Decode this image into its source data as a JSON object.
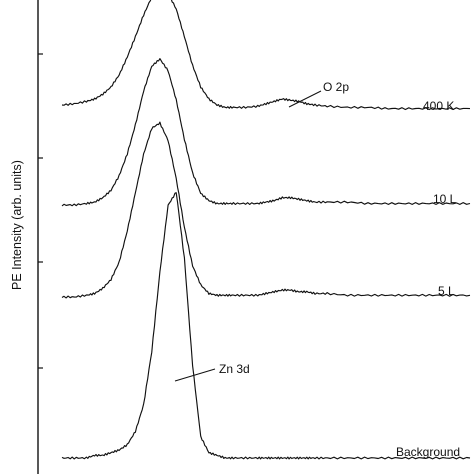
{
  "chart_data": {
    "type": "line",
    "title": "",
    "xlabel": "",
    "ylabel": "PE Intensity (arb. units)",
    "x_tick_labels": [],
    "y_tick_labels": [],
    "grid": false,
    "stacked_offset": true,
    "series": [
      {
        "name": "400 K",
        "x": [
          0,
          0.03,
          0.06,
          0.08,
          0.1,
          0.12,
          0.14,
          0.16,
          0.18,
          0.2,
          0.22,
          0.24,
          0.26,
          0.28,
          0.3,
          0.32,
          0.34,
          0.36,
          0.38,
          0.4,
          0.42,
          0.45,
          0.48,
          0.5,
          0.52,
          0.54,
          0.56,
          0.58,
          0.6,
          0.62,
          0.65,
          0.7,
          0.75,
          0.8,
          0.85,
          0.9,
          0.95,
          1.0
        ],
        "values": [
          0.05,
          0.06,
          0.08,
          0.1,
          0.14,
          0.2,
          0.3,
          0.45,
          0.62,
          0.8,
          0.95,
          1.0,
          0.98,
          0.85,
          0.62,
          0.38,
          0.2,
          0.1,
          0.05,
          0.03,
          0.03,
          0.03,
          0.04,
          0.06,
          0.08,
          0.1,
          0.09,
          0.08,
          0.06,
          0.05,
          0.04,
          0.03,
          0.03,
          0.02,
          0.02,
          0.02,
          0.02,
          0.02
        ]
      },
      {
        "name": "10 L",
        "x": [
          0,
          0.03,
          0.06,
          0.08,
          0.1,
          0.12,
          0.14,
          0.16,
          0.18,
          0.2,
          0.22,
          0.24,
          0.26,
          0.28,
          0.3,
          0.32,
          0.34,
          0.36,
          0.38,
          0.4,
          0.42,
          0.45,
          0.48,
          0.5,
          0.52,
          0.54,
          0.56,
          0.58,
          0.6,
          0.62,
          0.65,
          0.7,
          0.75,
          0.8,
          0.85,
          0.9,
          0.95,
          1.0
        ],
        "values": [
          0.0,
          0.0,
          0.01,
          0.02,
          0.05,
          0.1,
          0.2,
          0.35,
          0.55,
          0.78,
          0.95,
          1.0,
          0.92,
          0.72,
          0.45,
          0.22,
          0.08,
          0.03,
          0.01,
          0.01,
          0.01,
          0.01,
          0.01,
          0.02,
          0.03,
          0.05,
          0.05,
          0.04,
          0.03,
          0.02,
          0.02,
          0.02,
          0.01,
          0.01,
          0.01,
          0.01,
          0.01,
          0.01
        ]
      },
      {
        "name": "5 L",
        "x": [
          0,
          0.03,
          0.06,
          0.08,
          0.1,
          0.12,
          0.14,
          0.16,
          0.18,
          0.2,
          0.22,
          0.24,
          0.26,
          0.28,
          0.3,
          0.32,
          0.34,
          0.36,
          0.38,
          0.4,
          0.42,
          0.45,
          0.48,
          0.5,
          0.52,
          0.54,
          0.56,
          0.58,
          0.6,
          0.62,
          0.65,
          0.7,
          0.75,
          0.8,
          0.85,
          0.9,
          0.95,
          1.0
        ],
        "values": [
          0.0,
          0.0,
          0.01,
          0.02,
          0.05,
          0.1,
          0.2,
          0.38,
          0.6,
          0.82,
          0.97,
          1.0,
          0.9,
          0.68,
          0.4,
          0.18,
          0.07,
          0.02,
          0.01,
          0.01,
          0.01,
          0.01,
          0.01,
          0.02,
          0.03,
          0.04,
          0.04,
          0.03,
          0.03,
          0.02,
          0.02,
          0.01,
          0.01,
          0.01,
          0.01,
          0.01,
          0.01,
          0.01
        ]
      },
      {
        "name": "Background",
        "x": [
          0,
          0.03,
          0.06,
          0.08,
          0.1,
          0.12,
          0.14,
          0.16,
          0.18,
          0.2,
          0.22,
          0.24,
          0.26,
          0.28,
          0.3,
          0.32,
          0.34,
          0.36,
          0.38,
          0.4,
          0.42,
          0.45,
          0.48,
          0.5,
          0.52,
          0.54,
          0.56,
          0.58,
          0.6,
          0.62,
          0.65,
          0.7,
          0.75,
          0.8,
          0.85,
          0.9,
          0.95,
          1.0
        ],
        "values": [
          0.0,
          0.0,
          0.0,
          0.01,
          0.01,
          0.02,
          0.03,
          0.05,
          0.1,
          0.2,
          0.4,
          0.7,
          0.95,
          1.0,
          0.75,
          0.35,
          0.08,
          0.02,
          0.01,
          0.0,
          0.0,
          0.0,
          0.0,
          0.0,
          0.0,
          0.0,
          0.0,
          0.0,
          0.0,
          0.0,
          0.0,
          0.0,
          0.0,
          0.0,
          0.0,
          0.0,
          0.0,
          0.0
        ]
      }
    ],
    "annotations": [
      {
        "text": "O 2p",
        "target_series": "400 K",
        "target_x": 0.55
      },
      {
        "text": "Zn 3d",
        "target_series": "Background",
        "target_x": 0.27
      }
    ]
  }
}
